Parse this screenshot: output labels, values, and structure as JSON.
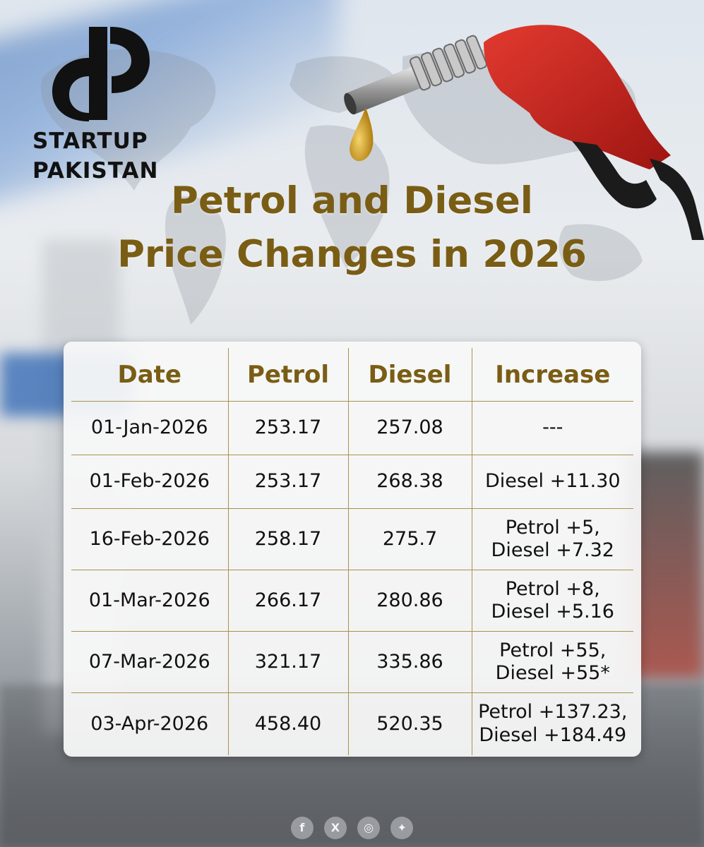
{
  "brand": {
    "line1": "STARTUP",
    "line2": "PAKISTAN"
  },
  "title": {
    "line1": "Petrol and Diesel",
    "line2": "Price Changes in 2026"
  },
  "table": {
    "headers": [
      "Date",
      "Petrol",
      "Diesel",
      "Increase"
    ],
    "rows": [
      {
        "date": "01-Jan-2026",
        "petrol": "253.17",
        "diesel": "257.08",
        "increase": [
          "---"
        ]
      },
      {
        "date": "01-Feb-2026",
        "petrol": "253.17",
        "diesel": "268.38",
        "increase": [
          "Diesel +11.30"
        ]
      },
      {
        "date": "16-Feb-2026",
        "petrol": "258.17",
        "diesel": "275.7",
        "increase": [
          "Petrol +5,",
          "Diesel +7.32"
        ]
      },
      {
        "date": "01-Mar-2026",
        "petrol": "266.17",
        "diesel": "280.86",
        "increase": [
          "Petrol +8,",
          "Diesel +5.16"
        ]
      },
      {
        "date": "07-Mar-2026",
        "petrol": "321.17",
        "diesel": "335.86",
        "increase": [
          "Petrol +55,",
          "Diesel +55*"
        ]
      },
      {
        "date": "03-Apr-2026",
        "petrol": "458.40",
        "diesel": "520.35",
        "increase": [
          "Petrol +137.23,",
          "Diesel +184.49"
        ]
      }
    ]
  },
  "social_icons": [
    {
      "name": "facebook-icon",
      "glyph": "f"
    },
    {
      "name": "x-icon",
      "glyph": "X"
    },
    {
      "name": "instagram-icon",
      "glyph": "◎"
    },
    {
      "name": "twitter-icon",
      "glyph": "✦"
    }
  ],
  "colors": {
    "title_gold": "#7a5d14",
    "divider_gold": "#a8924f",
    "nozzle_red": "#c8201e"
  }
}
